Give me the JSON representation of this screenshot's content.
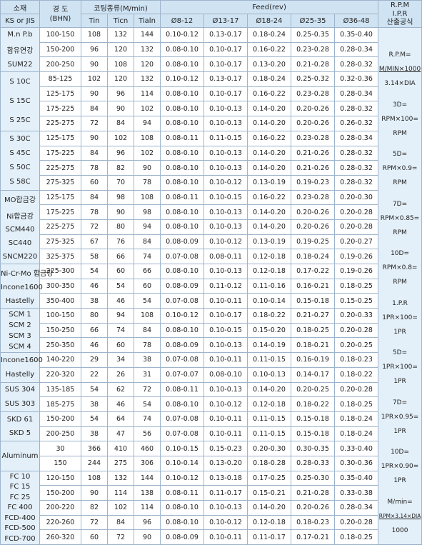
{
  "header": {
    "material": "소재",
    "standard": "KS or JIS",
    "hardness": "경 도\n(BHN)",
    "coating": "코팅종류(M/min)",
    "coating_types": [
      "Tin",
      "Ticn",
      "Tialn"
    ],
    "feed": "Feed(rev)",
    "diameters": [
      "Ø8-12",
      "Ø13-17",
      "Ø18-24",
      "Ø25-35",
      "Ø36-48"
    ],
    "formula_title": [
      "R.P.M",
      "I.P.R",
      "산출공식"
    ]
  },
  "groups": [
    {
      "materials": [
        "M.n P.b",
        "함유연강",
        "SUM22"
      ],
      "rows": [
        [
          "100-150",
          108,
          132,
          144,
          "0.10-0.12",
          "0.13-0.17",
          "0.18-0.24",
          "0.25-0.35",
          "0.35-0.40"
        ],
        [
          "150-200",
          96,
          120,
          132,
          "0.08-0.10",
          "0.10-0.17",
          "0.16-0.22",
          "0.23-0.28",
          "0.28-0.34"
        ],
        [
          "200-250",
          90,
          108,
          120,
          "0.08-0.10",
          "0.10-0.17",
          "0.13-0.20",
          "0.21-0.28",
          "0.28-0.32"
        ]
      ]
    },
    {
      "materials": [
        "S 10C",
        "S 15C",
        "S 25C"
      ],
      "rows": [
        [
          "85-125",
          102,
          120,
          132,
          "0.10-0.12",
          "0.13-0.17",
          "0.18-0.24",
          "0.25-0.32",
          "0.32-0.36"
        ],
        [
          "125-175",
          90,
          96,
          114,
          "0.08-0.10",
          "0.10-0.17",
          "0.16-0.22",
          "0.23-0.28",
          "0.28-0.34"
        ],
        [
          "175-225",
          84,
          90,
          102,
          "0.08-0.10",
          "0.10-0.13",
          "0.14-0.20",
          "0.20-0.26",
          "0.28-0.32"
        ],
        [
          "225-275",
          72,
          84,
          94,
          "0.08-0.10",
          "0.10-0.13",
          "0.14-0.20",
          "0.20-0.26",
          "0.26-0.32"
        ]
      ]
    },
    {
      "materials": [
        "S 30C",
        "S 45C",
        "S 50C",
        "S 58C"
      ],
      "rows": [
        [
          "125-175",
          90,
          102,
          108,
          "0.08-0.11",
          "0.11-0.15",
          "0.16-0.22",
          "0.23-0.28",
          "0.28-0.34"
        ],
        [
          "175-225",
          84,
          96,
          102,
          "0.08-0.10",
          "0.10-0.13",
          "0.14-0.20",
          "0.21-0.26",
          "0.28-0.32"
        ],
        [
          "225-275",
          78,
          82,
          90,
          "0.08-0.10",
          "0.10-0.13",
          "0.14-0.20",
          "0.21-0.26",
          "0.28-0.32"
        ],
        [
          "275-325",
          60,
          70,
          78,
          "0.08-0.10",
          "0.10-0.12",
          "0.13-0.19",
          "0.19-0.23",
          "0.28-0.32"
        ]
      ]
    },
    {
      "materials": [
        "MO합금강",
        "Ni합금강",
        "SCM440",
        "SC440",
        "SNCM220"
      ],
      "rows": [
        [
          "125-175",
          84,
          98,
          108,
          "0.08-0.11",
          "0.10-0.15",
          "0.16-0.22",
          "0.23-0.28",
          "0.20-0.30"
        ],
        [
          "175-225",
          78,
          90,
          98,
          "0.08-0.10",
          "0.10-0.13",
          "0.14-0.20",
          "0.20-0.26",
          "0.20-0.28"
        ],
        [
          "225-275",
          72,
          80,
          94,
          "0.08-0.10",
          "0.10-0.13",
          "0.14-0.20",
          "0.20-0.26",
          "0.20-0.28"
        ],
        [
          "275-325",
          67,
          76,
          84,
          "0.08-0.09",
          "0.10-0.12",
          "0.13-0.19",
          "0.19-0.25",
          "0.20-0.27"
        ],
        [
          "325-375",
          58,
          66,
          74,
          "0.07-0.08",
          "0.08-0.11",
          "0.12-0.18",
          "0.18-0.24",
          "0.19-0.26"
        ]
      ]
    },
    {
      "materials": [
        "Ni-Cr-Mo 합금강",
        "Incone1600",
        "Hastelly"
      ],
      "rows": [
        [
          "225-300",
          54,
          60,
          66,
          "0.08-0.10",
          "0.10-0.13",
          "0.12-0.18",
          "0.17-0.22",
          "0.19-0.26"
        ],
        [
          "300-350",
          46,
          54,
          60,
          "0.08-0.09",
          "0.11-0.12",
          "0.11-0.16",
          "0.16-0.21",
          "0.18-0.25"
        ],
        [
          "350-400",
          38,
          46,
          54,
          "0.07-0.08",
          "0.10-0.11",
          "0.10-0.14",
          "0.15-0.18",
          "0.15-0.25"
        ]
      ]
    },
    {
      "materials": [
        "SCM 1",
        "SCM 2",
        "SCM 3",
        "SCM 4"
      ],
      "rows": [
        [
          "100-150",
          80,
          94,
          108,
          "0.10-0.12",
          "0.10-0.17",
          "0.18-0.22",
          "0.21-0.27",
          "0.20-0.33"
        ],
        [
          "150-250",
          66,
          74,
          84,
          "0.08-0.10",
          "0.10-0.15",
          "0.15-0.20",
          "0.18-0.25",
          "0.20-0.28"
        ],
        [
          "250-350",
          46,
          60,
          78,
          "0.08-0.09",
          "0.10-0.13",
          "0.14-0.19",
          "0.18-0.21",
          "0.20-0.25"
        ]
      ]
    },
    {
      "materials": [
        "Incone1600",
        "Hastelly"
      ],
      "rows": [
        [
          "140-220",
          29,
          34,
          38,
          "0.07-0.08",
          "0.10-0.11",
          "0.11-0.15",
          "0.16-0.19",
          "0.18-0.23"
        ],
        [
          "220-320",
          22,
          26,
          31,
          "0.07-0.07",
          "0.08-0.10",
          "0.10-0.13",
          "0.14-0.17",
          "0.18-0.22"
        ]
      ]
    },
    {
      "materials": [
        "SUS 304",
        "SUS 303"
      ],
      "rows": [
        [
          "135-185",
          54,
          62,
          72,
          "0.08-0.11",
          "0.10-0.13",
          "0.14-0.20",
          "0.20-0.25",
          "0.20-0.28"
        ],
        [
          "185-275",
          38,
          46,
          54,
          "0.08-0.10",
          "0.10-0.12",
          "0.12-0.18",
          "0.18-0.22",
          "0.18-0.25"
        ]
      ]
    },
    {
      "materials": [
        "SKD 61",
        "SKD 5"
      ],
      "rows": [
        [
          "150-200",
          54,
          64,
          74,
          "0.07-0.08",
          "0.10-0.11",
          "0.11-0.15",
          "0.15-0.18",
          "0.18-0.24"
        ],
        [
          "200-250",
          38,
          47,
          56,
          "0.07-0.08",
          "0.10-0.11",
          "0.11-0.15",
          "0.15-0.18",
          "0.18-0.24"
        ]
      ]
    },
    {
      "materials": [
        "Aluminum"
      ],
      "rows": [
        [
          "30",
          366,
          410,
          460,
          "0.10-0.15",
          "0.15-0.23",
          "0.20-0.30",
          "0.30-0.35",
          "0.33-0.40"
        ],
        [
          "150",
          244,
          275,
          306,
          "0.10-0.14",
          "0.13-0.20",
          "0.18-0.28",
          "0.28-0.33",
          "0.30-0.36"
        ]
      ]
    },
    {
      "materials": [
        "FC 10",
        "FC 15",
        "FC 25",
        "FC 400",
        "FCD-400",
        "FCD-500",
        "FCD-700"
      ],
      "rows": [
        [
          "120-150",
          108,
          132,
          144,
          "0.10-0.12",
          "0.13-0.18",
          "0.17-0.25",
          "0.25-0.30",
          "0.35-0.40"
        ],
        [
          "150-200",
          90,
          114,
          138,
          "0.08-0.11",
          "0.11-0.17",
          "0.15-0.21",
          "0.21-0.28",
          "0.33-0.38"
        ],
        [
          "200-220",
          82,
          102,
          114,
          "0.08-0.10",
          "0.10-0.13",
          "0.14-0.20",
          "0.20-0.26",
          "0.28-0.34"
        ],
        [
          "220-260",
          72,
          84,
          96,
          "0.08-0.10",
          "0.10-0.12",
          "0.12-0.18",
          "0.18-0.23",
          "0.20-0.28"
        ],
        [
          "260-320",
          60,
          72,
          90,
          "0.08-0.09",
          "0.10-0.11",
          "0.11-0.17",
          "0.17-0.21",
          "0.18-0.25"
        ]
      ]
    }
  ],
  "formulas": [
    [
      "R.P.M=",
      "M/MIN×1000",
      "3.14×DIA"
    ],
    [
      "3D=",
      "RPM×100=",
      "RPM"
    ],
    [
      "5D=",
      "RPM×0.9=",
      "RPM"
    ],
    [
      "7D=",
      "RPM×0.85=",
      "RPM"
    ],
    [
      "10D=",
      "RPM×0.8=",
      "RPM"
    ],
    [
      "1.P.R",
      "1PR×100=",
      "1PR"
    ],
    [
      "5D=",
      "1PR×100=",
      "1PR"
    ],
    [
      "7D=",
      "1PR×0.95=",
      "1PR"
    ],
    [
      "10D=",
      "1PR×0.90=",
      "1PR"
    ],
    [
      "M/min=",
      "RPM×3.14×DIA",
      "1000"
    ]
  ]
}
